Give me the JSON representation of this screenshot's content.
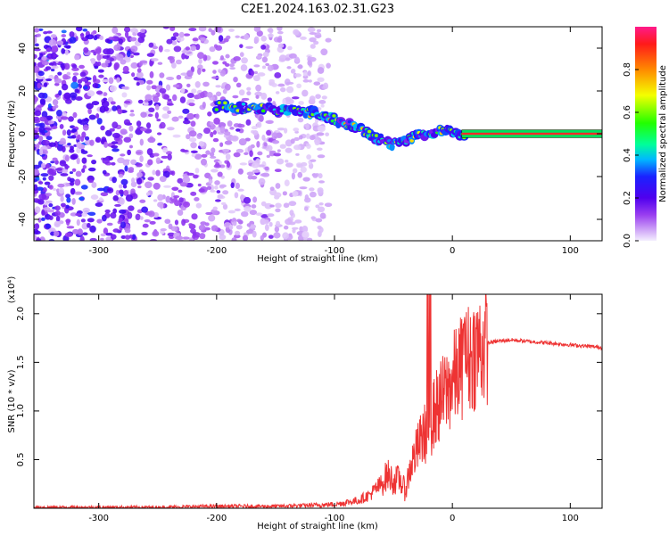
{
  "title": "C2E1.2024.163.02.31.G23",
  "chart_data": [
    {
      "type": "heatmap",
      "xlabel": "Height of straight line (km)",
      "ylabel": "Frequency (Hz)",
      "xlim": [
        -355,
        127
      ],
      "ylim": [
        -50,
        50
      ],
      "x_ticks": [
        -300,
        -200,
        -100,
        0,
        100
      ],
      "y_ticks": [
        -40,
        -20,
        0,
        20,
        40
      ],
      "x_tick_labels": [
        "-300",
        "-200",
        "-100",
        "0",
        "100"
      ],
      "y_tick_labels": [
        "-40",
        "-20",
        "0",
        "20",
        "40"
      ],
      "colorbar": {
        "label": "Normalized spectral amplitude",
        "range": [
          0,
          1
        ],
        "ticks": [
          0.0,
          0.2,
          0.4,
          0.6,
          0.8
        ],
        "tick_labels": [
          "0.0",
          "0.2",
          "0.4",
          "0.6",
          "0.8"
        ]
      },
      "ridge": {
        "x": [
          -200,
          -180,
          -160,
          -140,
          -120,
          -100,
          -80,
          -60,
          -50,
          -40,
          -30,
          -20,
          -10,
          0,
          10,
          50,
          100,
          127
        ],
        "y": [
          13,
          12,
          12,
          11,
          10,
          7,
          2,
          -3,
          -5,
          -3,
          -1,
          0,
          1,
          1,
          0,
          0,
          0,
          0
        ]
      }
    },
    {
      "type": "line",
      "xlabel": "Height of straight line (km)",
      "ylabel": "SNR (10 * v/v)",
      "y_scale_label": "(x10⁴)",
      "xlim": [
        -355,
        127
      ],
      "ylim": [
        0,
        2.2
      ],
      "x_ticks": [
        -300,
        -200,
        -100,
        0,
        100
      ],
      "y_ticks": [
        0.5,
        1.0,
        1.5,
        2.0
      ],
      "x_tick_labels": [
        "-300",
        "-200",
        "-100",
        "0",
        "100"
      ],
      "y_tick_labels": [
        "0.5",
        "1.0",
        "1.5",
        "2.0"
      ],
      "color": "#ee3333",
      "series": [
        {
          "x": [
            -355,
            -300,
            -250,
            -200,
            -150,
            -120,
            -100,
            -90,
            -80,
            -70,
            -60,
            -55,
            -50,
            -45,
            -40,
            -35,
            -30,
            -25,
            -20,
            -15,
            -10,
            -5,
            0,
            5,
            10,
            20,
            30,
            40,
            50,
            60,
            70,
            80,
            90,
            100,
            110,
            120,
            127
          ],
          "y": [
            0.01,
            0.01,
            0.01,
            0.02,
            0.02,
            0.03,
            0.04,
            0.06,
            0.08,
            0.14,
            0.25,
            0.35,
            0.28,
            0.3,
            0.18,
            0.45,
            0.6,
            0.75,
            0.8,
            1.0,
            1.1,
            1.2,
            1.3,
            1.4,
            1.5,
            1.62,
            1.7,
            1.72,
            1.73,
            1.72,
            1.71,
            1.7,
            1.69,
            1.68,
            1.67,
            1.66,
            1.65
          ]
        }
      ]
    }
  ]
}
